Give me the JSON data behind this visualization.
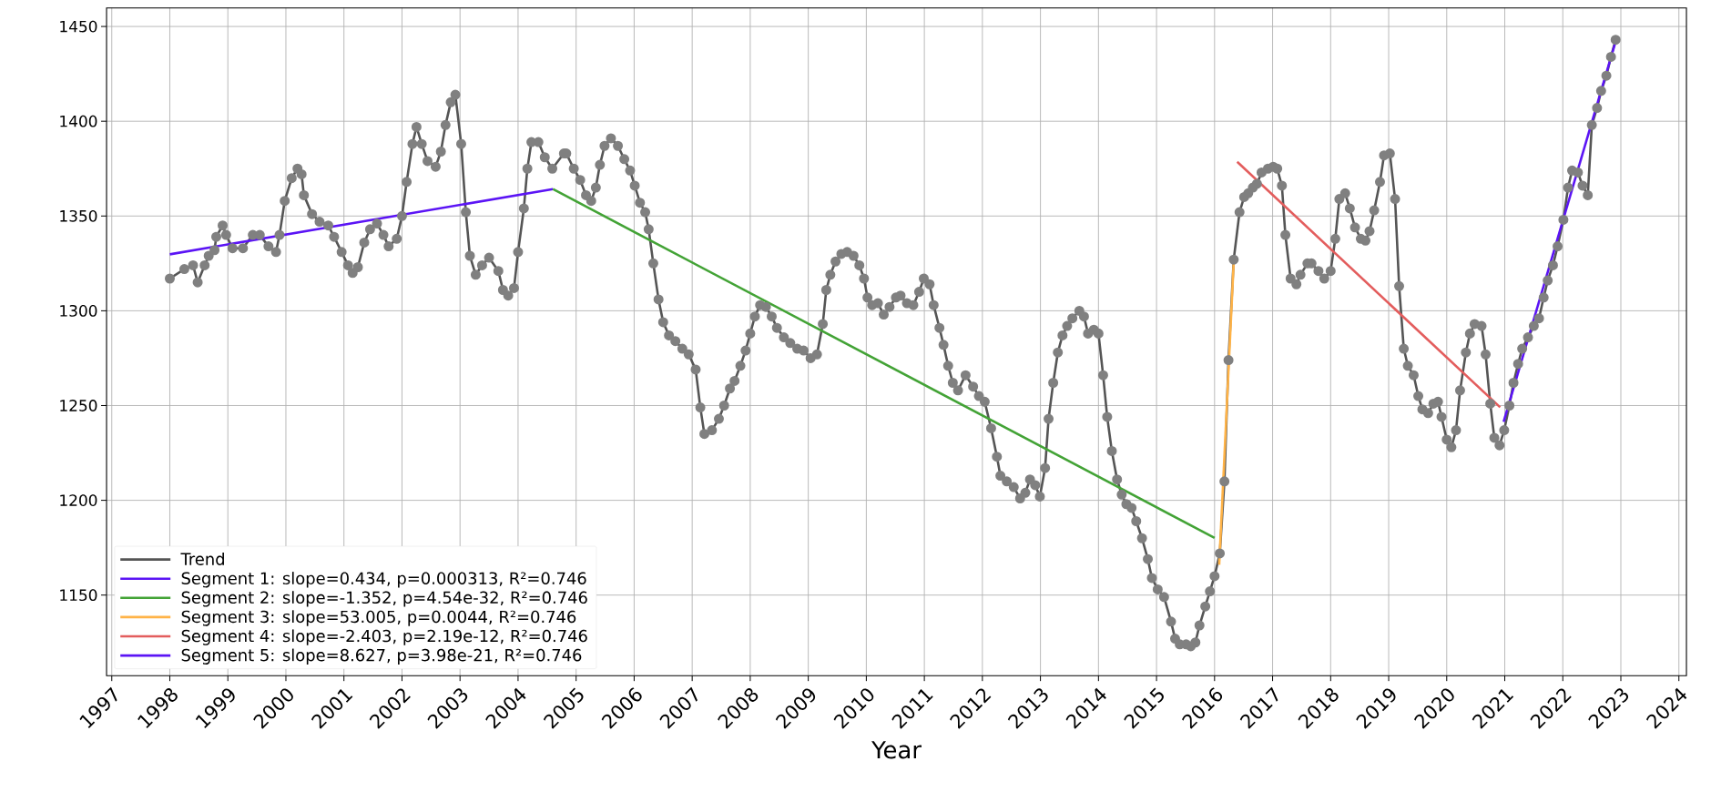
{
  "chart_data": {
    "type": "line",
    "xlabel": "Year",
    "xlim": [
      1996.91,
      2024.13
    ],
    "ylim": [
      1107.5,
      1459.8
    ],
    "xticks": [
      1997,
      1998,
      1999,
      2000,
      2001,
      2002,
      2003,
      2004,
      2005,
      2006,
      2007,
      2008,
      2009,
      2010,
      2011,
      2012,
      2013,
      2014,
      2015,
      2016,
      2017,
      2018,
      2019,
      2020,
      2021,
      2022,
      2023,
      2024
    ],
    "yticks": [
      1150,
      1200,
      1250,
      1300,
      1350,
      1400,
      1450
    ],
    "grid": true,
    "legend": "bottom left",
    "series": [
      {
        "name": "Trend",
        "type": "line",
        "color": "#555555",
        "marker": "circle",
        "x": [
          1998.0,
          1998.25,
          1998.4,
          1998.48,
          1998.6,
          1998.67,
          1998.77,
          1998.8,
          1998.91,
          1998.97,
          1999.08,
          1999.26,
          1999.43,
          1999.55,
          1999.7,
          1999.83,
          1999.89,
          1999.98,
          2000.1,
          2000.2,
          2000.27,
          2000.31,
          2000.45,
          2000.58,
          2000.73,
          2000.83,
          2000.96,
          2001.07,
          2001.15,
          2001.24,
          2001.35,
          2001.45,
          2001.57,
          2001.68,
          2001.77,
          2001.91,
          2002.0,
          2002.08,
          2002.18,
          2002.25,
          2002.34,
          2002.44,
          2002.58,
          2002.67,
          2002.75,
          2002.84,
          2002.92,
          2003.02,
          2003.1,
          2003.17,
          2003.27,
          2003.38,
          2003.5,
          2003.66,
          2003.74,
          2003.83,
          2003.93,
          2004.0,
          2004.1,
          2004.16,
          2004.23,
          2004.35,
          2004.46,
          2004.59,
          2004.79,
          2004.83,
          2004.96,
          2005.07,
          2005.17,
          2005.26,
          2005.34,
          2005.41,
          2005.49,
          2005.6,
          2005.72,
          2005.83,
          2005.93,
          2006.01,
          2006.1,
          2006.19,
          2006.25,
          2006.33,
          2006.42,
          2006.5,
          2006.6,
          2006.71,
          2006.83,
          2006.94,
          2007.06,
          2007.14,
          2007.21,
          2007.34,
          2007.46,
          2007.55,
          2007.65,
          2007.73,
          2007.83,
          2007.92,
          2008.0,
          2008.08,
          2008.17,
          2008.27,
          2008.37,
          2008.46,
          2008.58,
          2008.69,
          2008.81,
          2008.92,
          2009.04,
          2009.15,
          2009.25,
          2009.31,
          2009.38,
          2009.47,
          2009.57,
          2009.67,
          2009.78,
          2009.88,
          2009.96,
          2010.02,
          2010.1,
          2010.2,
          2010.3,
          2010.4,
          2010.51,
          2010.59,
          2010.7,
          2010.81,
          2010.91,
          2010.99,
          2011.09,
          2011.16,
          2011.26,
          2011.33,
          2011.41,
          2011.49,
          2011.58,
          2011.71,
          2011.84,
          2011.94,
          2012.04,
          2012.15,
          2012.25,
          2012.31,
          2012.42,
          2012.54,
          2012.65,
          2012.74,
          2012.82,
          2012.91,
          2012.99,
          2013.08,
          2013.14,
          2013.22,
          2013.3,
          2013.38,
          2013.46,
          2013.55,
          2013.67,
          2013.75,
          2013.82,
          2013.92,
          2014.0,
          2014.08,
          2014.15,
          2014.23,
          2014.32,
          2014.4,
          2014.48,
          2014.57,
          2014.65,
          2014.75,
          2014.85,
          2014.92,
          2015.02,
          2015.13,
          2015.25,
          2015.32,
          2015.4,
          2015.51,
          2015.59,
          2015.67,
          2015.74,
          2015.84,
          2015.92,
          2016.0,
          2016.09,
          2016.17,
          2016.24,
          2016.33,
          2016.43,
          2016.51,
          2016.58,
          2016.66,
          2016.73,
          2016.81,
          2016.92,
          2017.01,
          2017.08,
          2017.16,
          2017.22,
          2017.31,
          2017.41,
          2017.48,
          2017.6,
          2017.67,
          2017.79,
          2017.89,
          2018.0,
          2018.08,
          2018.15,
          2018.25,
          2018.33,
          2018.42,
          2018.52,
          2018.6,
          2018.67,
          2018.75,
          2018.85,
          2018.92,
          2019.02,
          2019.11,
          2019.18,
          2019.26,
          2019.33,
          2019.43,
          2019.51,
          2019.58,
          2019.68,
          2019.77,
          2019.85,
          2019.91,
          2020.0,
          2020.08,
          2020.16,
          2020.23,
          2020.33,
          2020.4,
          2020.48,
          2020.6,
          2020.67,
          2020.75,
          2020.82,
          2020.91,
          2020.99,
          2021.08,
          2021.15,
          2021.23,
          2021.3,
          2021.4,
          2021.5,
          2021.59,
          2021.67,
          2021.74,
          2021.83,
          2021.91,
          2022.01,
          2022.09,
          2022.16,
          2022.26,
          2022.34,
          2022.43,
          2022.5,
          2022.59,
          2022.66,
          2022.75,
          2022.83,
          2022.91
        ],
        "values": [
          1317,
          1322,
          1324,
          1315,
          1324,
          1329,
          1332,
          1339,
          1345,
          1340,
          1333,
          1333,
          1340,
          1340,
          1334,
          1331,
          1340,
          1358,
          1370,
          1375,
          1372,
          1361,
          1351,
          1347,
          1345,
          1339,
          1331,
          1324,
          1320,
          1323,
          1336,
          1343,
          1346,
          1340,
          1334,
          1338,
          1350,
          1368,
          1388,
          1397,
          1388,
          1379,
          1376,
          1384,
          1398,
          1410,
          1414,
          1388,
          1352,
          1329,
          1319,
          1324,
          1328,
          1321,
          1311,
          1308,
          1312,
          1331,
          1354,
          1375,
          1389,
          1389,
          1381,
          1375,
          1383,
          1383,
          1375,
          1369,
          1361,
          1358,
          1365,
          1377,
          1387,
          1391,
          1387,
          1380,
          1374,
          1366,
          1357,
          1352,
          1343,
          1325,
          1306,
          1294,
          1287,
          1284,
          1280,
          1277,
          1269,
          1249,
          1235,
          1237,
          1243,
          1250,
          1259,
          1263,
          1271,
          1279,
          1288,
          1297,
          1303,
          1302,
          1297,
          1291,
          1286,
          1283,
          1280,
          1279,
          1275,
          1277,
          1293,
          1311,
          1319,
          1326,
          1330,
          1331,
          1329,
          1324,
          1317,
          1307,
          1303,
          1304,
          1298,
          1302,
          1307,
          1308,
          1304,
          1303,
          1310,
          1317,
          1314,
          1303,
          1291,
          1282,
          1271,
          1262,
          1258,
          1266,
          1260,
          1255,
          1252,
          1238,
          1223,
          1213,
          1210,
          1207,
          1201,
          1204,
          1211,
          1208,
          1202,
          1217,
          1243,
          1262,
          1278,
          1287,
          1292,
          1296,
          1300,
          1297,
          1288,
          1290,
          1288,
          1266,
          1244,
          1226,
          1211,
          1203,
          1198,
          1196,
          1189,
          1180,
          1169,
          1159,
          1153,
          1149,
          1136,
          1127,
          1124,
          1124,
          1123,
          1125,
          1134,
          1144,
          1152,
          1160,
          1172,
          1210,
          1274,
          1327,
          1352,
          1360,
          1362,
          1365,
          1367,
          1373,
          1375,
          1376,
          1375,
          1366,
          1340,
          1317,
          1314,
          1319,
          1325,
          1325,
          1321,
          1317,
          1321,
          1338,
          1359,
          1362,
          1354,
          1344,
          1338,
          1337,
          1342,
          1353,
          1368,
          1382,
          1383,
          1359,
          1313,
          1280,
          1271,
          1266,
          1255,
          1248,
          1246,
          1251,
          1252,
          1244,
          1232,
          1228,
          1237,
          1258,
          1278,
          1288,
          1293,
          1292,
          1277,
          1251,
          1233,
          1229,
          1237,
          1250,
          1262,
          1272,
          1280,
          1286,
          1292,
          1296,
          1307,
          1316,
          1324,
          1334,
          1348,
          1365,
          1374,
          1373,
          1366,
          1361,
          1398,
          1407,
          1416,
          1424,
          1434,
          1443
        ]
      },
      {
        "name": "Segment 1: slope=0.434, p=0.000313,  R²=0.746",
        "type": "line",
        "color": "#5b14f5",
        "x": [
          1998.0,
          2004.6
        ],
        "values": [
          1329.8,
          1364.2
        ]
      },
      {
        "name": "Segment 2: slope=-1.352, p=4.54e-32,  R²=0.746",
        "type": "line",
        "color": "#43a336",
        "x": [
          2004.6,
          2016.0
        ],
        "values": [
          1364.2,
          1180.2
        ]
      },
      {
        "name": "Segment 3: slope=53.005, p=0.0044,  R²=0.746",
        "type": "line",
        "color": "#ffb347",
        "x": [
          2016.08,
          2016.33
        ],
        "values": [
          1166,
          1325.8
        ]
      },
      {
        "name": "Segment 4: slope=-2.403, p=2.19e-12,  R²=0.746",
        "type": "line",
        "color": "#e35d5d",
        "x": [
          2016.39,
          2020.92
        ],
        "values": [
          1378.6,
          1249.1
        ]
      },
      {
        "name": "Segment 5: slope=8.627, p=3.98e-21,  R²=0.746",
        "type": "line",
        "color": "#5b14f5",
        "x": [
          2020.98,
          2022.91
        ],
        "values": [
          1241.4,
          1442
        ]
      }
    ]
  }
}
